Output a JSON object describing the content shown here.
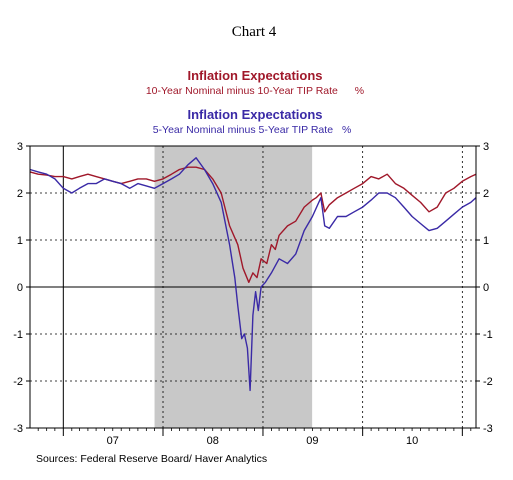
{
  "chart_data": {
    "type": "line",
    "title": "Chart 4",
    "series": [
      {
        "name": "Inflation Expectations",
        "subtitle": "10-Year Nominal minus 10-Year TIP Rate",
        "unit": "%",
        "color": "#a0182a",
        "points": [
          [
            "2006-09-01",
            2.45
          ],
          [
            "2006-10-01",
            2.4
          ],
          [
            "2006-11-01",
            2.38
          ],
          [
            "2006-12-01",
            2.35
          ],
          [
            "2007-01-01",
            2.35
          ],
          [
            "2007-02-01",
            2.3
          ],
          [
            "2007-03-01",
            2.35
          ],
          [
            "2007-04-01",
            2.4
          ],
          [
            "2007-05-01",
            2.35
          ],
          [
            "2007-06-01",
            2.3
          ],
          [
            "2007-07-01",
            2.25
          ],
          [
            "2007-08-01",
            2.2
          ],
          [
            "2007-09-01",
            2.25
          ],
          [
            "2007-10-01",
            2.3
          ],
          [
            "2007-11-01",
            2.3
          ],
          [
            "2007-12-01",
            2.25
          ],
          [
            "2008-01-01",
            2.3
          ],
          [
            "2008-02-01",
            2.4
          ],
          [
            "2008-03-01",
            2.5
          ],
          [
            "2008-04-01",
            2.55
          ],
          [
            "2008-05-01",
            2.55
          ],
          [
            "2008-06-01",
            2.5
          ],
          [
            "2008-07-01",
            2.3
          ],
          [
            "2008-08-01",
            2.0
          ],
          [
            "2008-09-01",
            1.3
          ],
          [
            "2008-10-01",
            0.9
          ],
          [
            "2008-10-20",
            0.4
          ],
          [
            "2008-11-10",
            0.1
          ],
          [
            "2008-11-25",
            0.3
          ],
          [
            "2008-12-10",
            0.2
          ],
          [
            "2008-12-25",
            0.6
          ],
          [
            "2009-01-15",
            0.5
          ],
          [
            "2009-02-01",
            0.9
          ],
          [
            "2009-02-15",
            0.8
          ],
          [
            "2009-03-01",
            1.1
          ],
          [
            "2009-04-01",
            1.3
          ],
          [
            "2009-05-01",
            1.4
          ],
          [
            "2009-06-01",
            1.7
          ],
          [
            "2009-07-01",
            1.85
          ],
          [
            "2009-07-15",
            1.9
          ],
          [
            "2009-08-01",
            2.0
          ],
          [
            "2009-08-15",
            1.6
          ],
          [
            "2009-09-01",
            1.75
          ],
          [
            "2009-10-01",
            1.9
          ],
          [
            "2009-11-01",
            2.0
          ],
          [
            "2009-12-01",
            2.1
          ],
          [
            "2010-01-01",
            2.2
          ],
          [
            "2010-02-01",
            2.35
          ],
          [
            "2010-03-01",
            2.3
          ],
          [
            "2010-04-01",
            2.4
          ],
          [
            "2010-05-01",
            2.2
          ],
          [
            "2010-06-01",
            2.1
          ],
          [
            "2010-07-01",
            1.95
          ],
          [
            "2010-08-01",
            1.8
          ],
          [
            "2010-09-01",
            1.6
          ],
          [
            "2010-10-01",
            1.7
          ],
          [
            "2010-11-01",
            2.0
          ],
          [
            "2010-12-01",
            2.1
          ],
          [
            "2011-01-01",
            2.25
          ],
          [
            "2011-02-01",
            2.35
          ],
          [
            "2011-02-20",
            2.4
          ]
        ]
      },
      {
        "name": "Inflation Expectations",
        "subtitle": "5-Year Nominal minus 5-Year TIP Rate",
        "unit": "%",
        "color": "#3a2aa6",
        "points": [
          [
            "2006-09-01",
            2.5
          ],
          [
            "2006-10-01",
            2.45
          ],
          [
            "2006-11-01",
            2.4
          ],
          [
            "2006-12-01",
            2.3
          ],
          [
            "2007-01-01",
            2.1
          ],
          [
            "2007-02-01",
            2.0
          ],
          [
            "2007-03-01",
            2.1
          ],
          [
            "2007-04-01",
            2.2
          ],
          [
            "2007-05-01",
            2.2
          ],
          [
            "2007-06-01",
            2.3
          ],
          [
            "2007-07-01",
            2.25
          ],
          [
            "2007-08-01",
            2.2
          ],
          [
            "2007-09-01",
            2.1
          ],
          [
            "2007-10-01",
            2.2
          ],
          [
            "2007-11-01",
            2.15
          ],
          [
            "2007-12-01",
            2.1
          ],
          [
            "2008-01-01",
            2.2
          ],
          [
            "2008-02-01",
            2.3
          ],
          [
            "2008-03-01",
            2.4
          ],
          [
            "2008-04-01",
            2.6
          ],
          [
            "2008-05-01",
            2.75
          ],
          [
            "2008-06-01",
            2.5
          ],
          [
            "2008-07-01",
            2.2
          ],
          [
            "2008-08-01",
            1.8
          ],
          [
            "2008-09-01",
            0.9
          ],
          [
            "2008-09-20",
            0.2
          ],
          [
            "2008-10-01",
            -0.4
          ],
          [
            "2008-10-15",
            -1.1
          ],
          [
            "2008-10-25",
            -1.0
          ],
          [
            "2008-11-05",
            -1.3
          ],
          [
            "2008-11-15",
            -2.2
          ],
          [
            "2008-11-25",
            -0.6
          ],
          [
            "2008-12-05",
            -0.1
          ],
          [
            "2008-12-15",
            -0.5
          ],
          [
            "2008-12-25",
            0.0
          ],
          [
            "2009-01-10",
            0.1
          ],
          [
            "2009-02-01",
            0.3
          ],
          [
            "2009-03-01",
            0.6
          ],
          [
            "2009-04-01",
            0.5
          ],
          [
            "2009-05-01",
            0.7
          ],
          [
            "2009-06-01",
            1.2
          ],
          [
            "2009-07-01",
            1.5
          ],
          [
            "2009-08-01",
            1.9
          ],
          [
            "2009-08-15",
            1.3
          ],
          [
            "2009-09-01",
            1.25
          ],
          [
            "2009-10-01",
            1.5
          ],
          [
            "2009-11-01",
            1.5
          ],
          [
            "2009-12-01",
            1.6
          ],
          [
            "2010-01-01",
            1.7
          ],
          [
            "2010-02-01",
            1.85
          ],
          [
            "2010-03-01",
            2.0
          ],
          [
            "2010-04-01",
            2.0
          ],
          [
            "2010-05-01",
            1.9
          ],
          [
            "2010-06-01",
            1.7
          ],
          [
            "2010-07-01",
            1.5
          ],
          [
            "2010-08-01",
            1.35
          ],
          [
            "2010-09-01",
            1.2
          ],
          [
            "2010-10-01",
            1.25
          ],
          [
            "2010-11-01",
            1.4
          ],
          [
            "2010-12-01",
            1.55
          ],
          [
            "2011-01-01",
            1.7
          ],
          [
            "2011-02-01",
            1.8
          ],
          [
            "2011-02-20",
            1.9
          ]
        ]
      }
    ],
    "shaded_period": [
      "2007-12-01",
      "2009-06-30"
    ],
    "x_tick_labels": [
      "07",
      "08",
      "09",
      "10"
    ],
    "ylim": [
      -3,
      3
    ],
    "y_ticks": [
      3,
      2,
      1,
      0,
      -1,
      -2,
      -3
    ],
    "grid": "dotted",
    "source": "Sources:  Federal Reserve Board/ Haver Analytics",
    "colors": {
      "shading": "#c8c8c8",
      "axis": "#000000",
      "grid": "#000000"
    }
  }
}
